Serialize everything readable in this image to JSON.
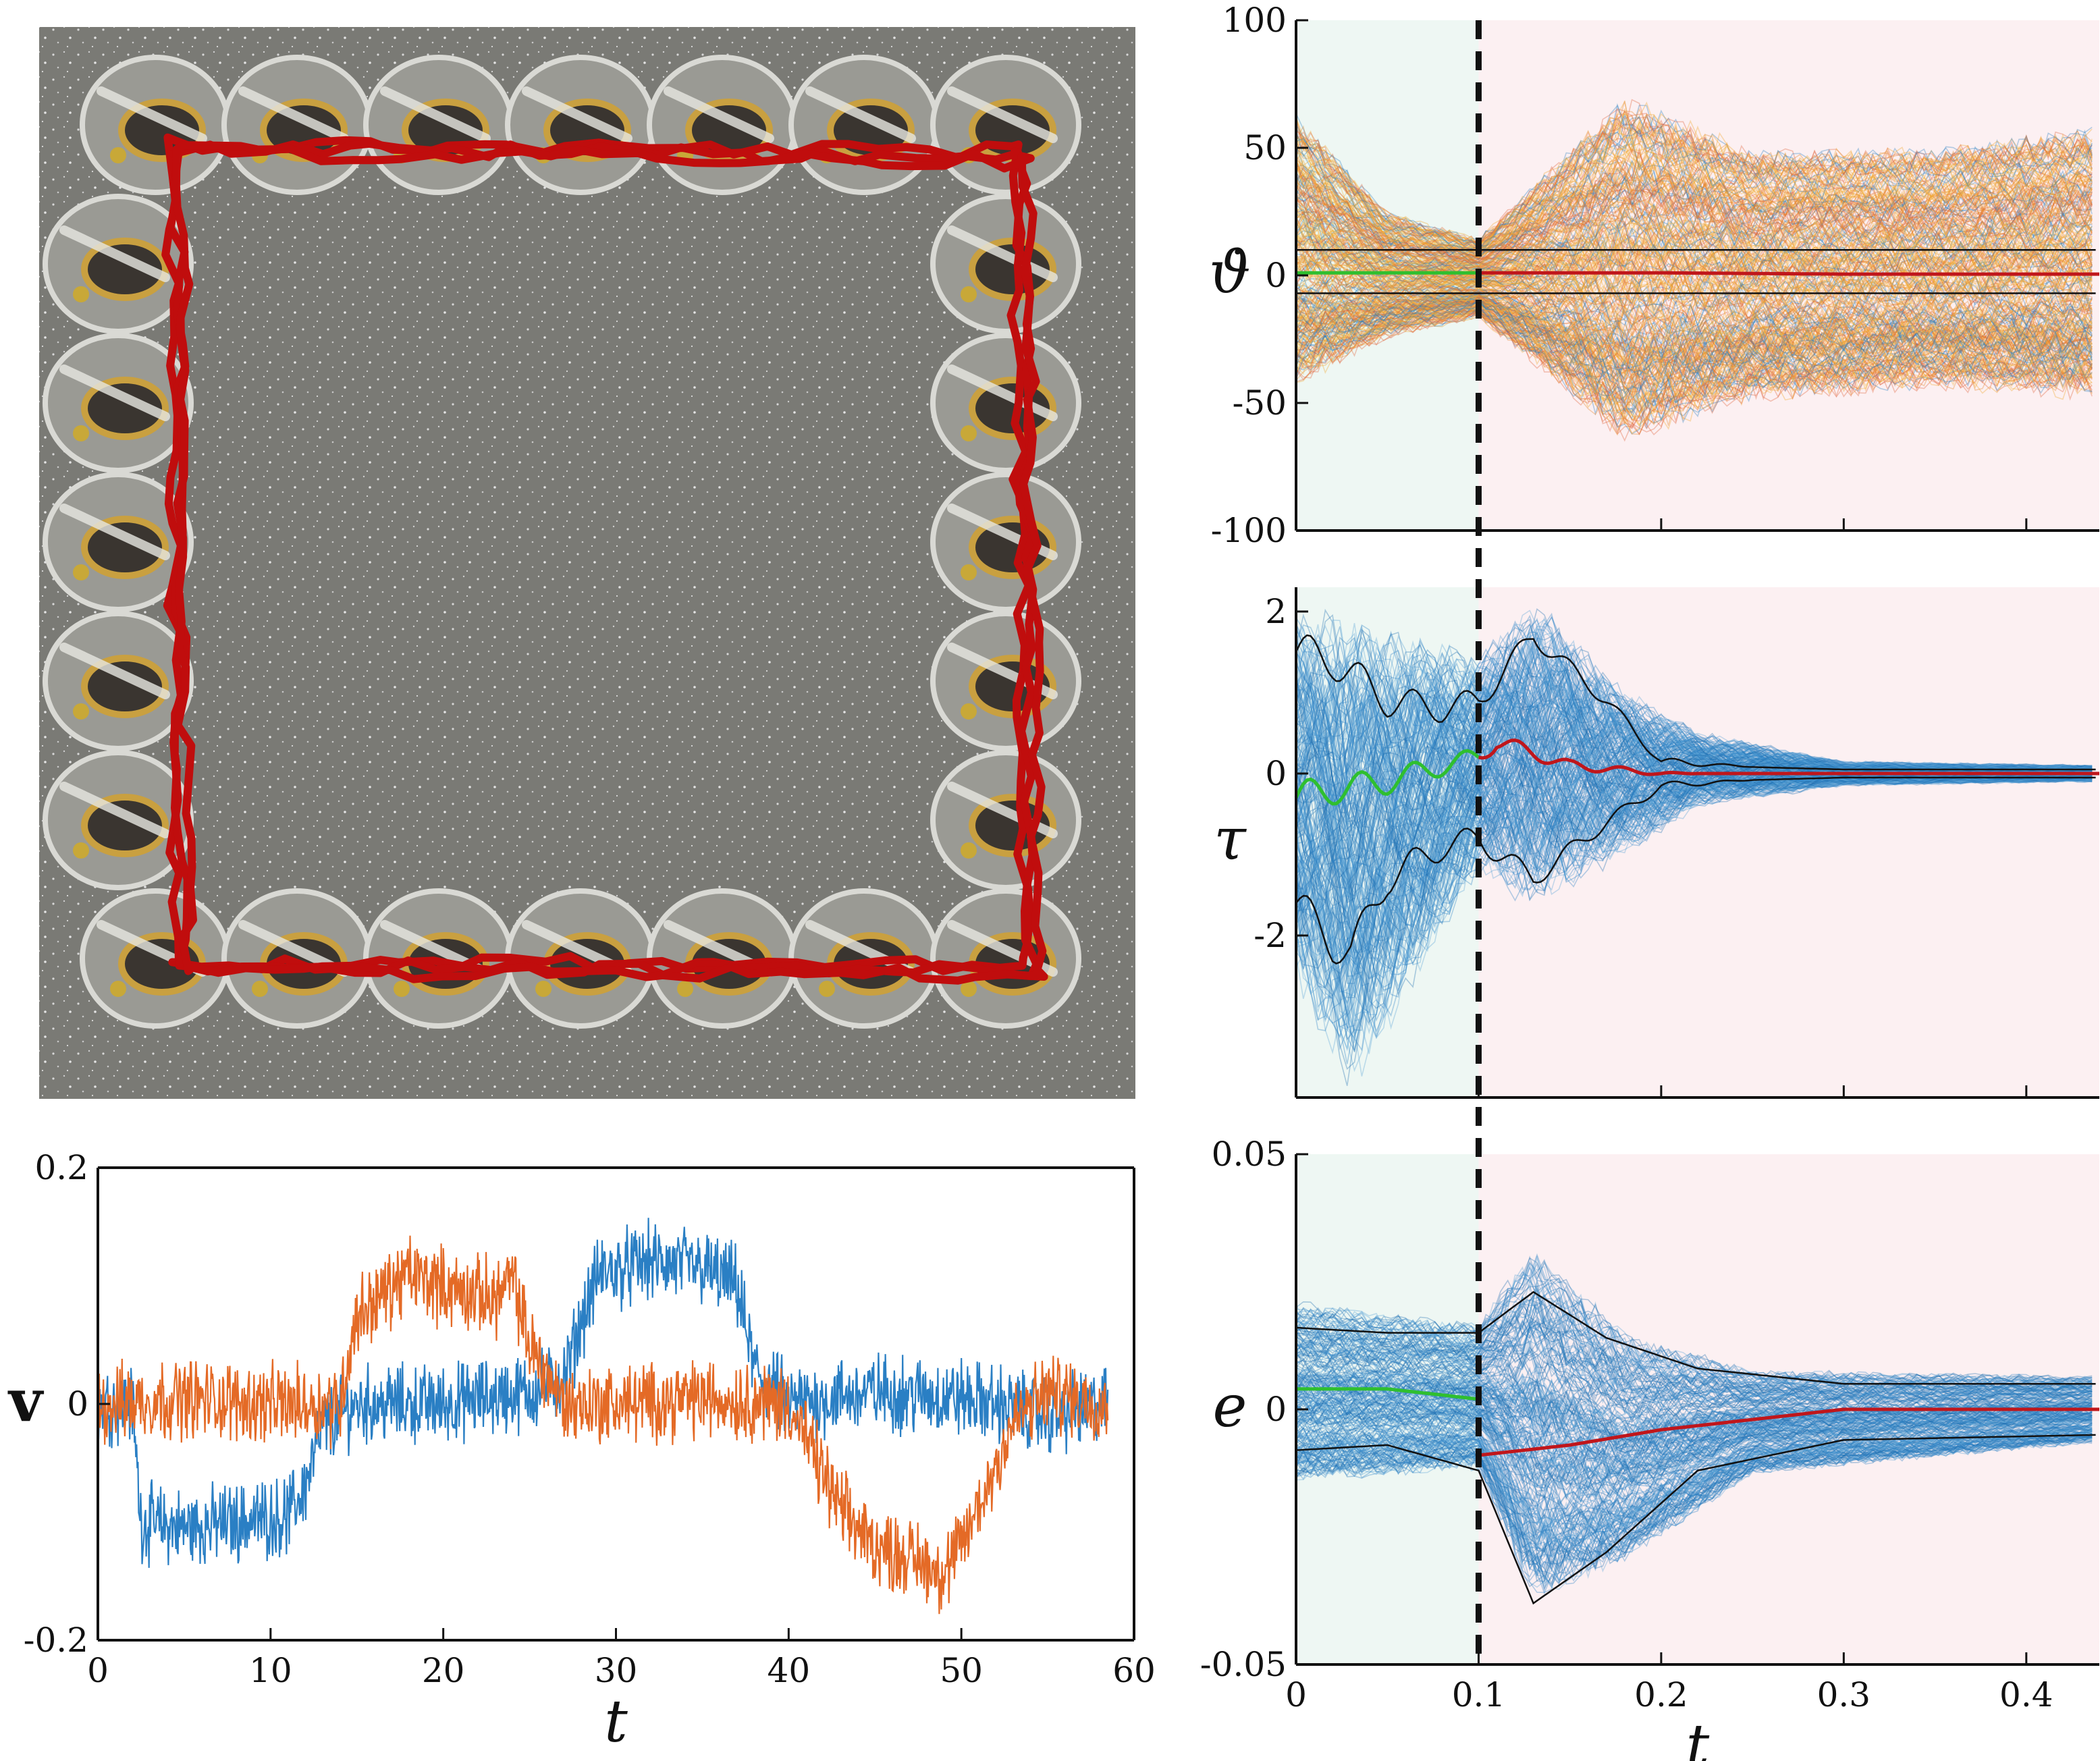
{
  "chart_data": [
    {
      "panel": "photo",
      "type": "image",
      "caption": ""
    },
    {
      "panel": "velocity",
      "type": "line",
      "xlabel": "t",
      "ylabel": "v",
      "xlim": [
        0,
        60
      ],
      "ylim": [
        -0.2,
        0.2
      ],
      "xticks": [
        0,
        10,
        20,
        30,
        40,
        50,
        60
      ],
      "xtick_labels": [
        "0",
        "10",
        "20",
        "30",
        "40",
        "50",
        "60"
      ],
      "yticks": [
        -0.2,
        0,
        0.2
      ],
      "ytick_labels": [
        "-0.2",
        "0",
        "0.2"
      ],
      "grid": false,
      "series": [
        {
          "color": "#2a7fc4",
          "x": [
            0,
            2,
            2.5,
            5,
            8,
            11,
            12,
            13,
            15,
            20,
            25,
            27,
            28,
            29,
            32,
            35,
            37,
            38,
            40,
            45,
            50,
            52,
            55,
            58.5
          ],
          "values": [
            0,
            0,
            -0.1,
            -0.105,
            -0.1,
            -0.095,
            -0.07,
            -0.02,
            0,
            0,
            0.01,
            0.02,
            0.07,
            0.11,
            0.12,
            0.115,
            0.1,
            0.03,
            0,
            0.01,
            0.005,
            0.0,
            -0.01,
            0
          ]
        },
        {
          "color": "#e46a26",
          "x": [
            0,
            5,
            10,
            14,
            15,
            18,
            21,
            23,
            24,
            25,
            27,
            30,
            35,
            40,
            41,
            43,
            45,
            48,
            49,
            50,
            51.5,
            53,
            55,
            58.5
          ],
          "values": [
            0,
            0.005,
            0.0,
            0.0,
            0.075,
            0.11,
            0.095,
            0.09,
            0.105,
            0.05,
            0.0,
            0.0,
            0.005,
            0.0,
            -0.03,
            -0.09,
            -0.12,
            -0.135,
            -0.145,
            -0.12,
            -0.07,
            -0.015,
            0.01,
            0.0
          ]
        }
      ]
    },
    {
      "panel": "theta-dot",
      "type": "line",
      "xlabel": "",
      "ylabel": "ϑ̇",
      "xlim": [
        0,
        0.44
      ],
      "ylim": [
        -100,
        100
      ],
      "yticks": [
        -100,
        -50,
        0,
        50,
        100
      ],
      "ytick_labels": [
        "-100",
        "-50",
        "0",
        "50",
        "100"
      ],
      "grid": false,
      "shaded_regions": [
        {
          "from": 0,
          "to": 0.1,
          "color": "#eef7f3"
        },
        {
          "from": 0.1,
          "to": 0.44,
          "color": "#fcf0f2"
        }
      ],
      "vline": 0.1,
      "mean": {
        "x": [
          0,
          0.1,
          0.2,
          0.3,
          0.44
        ],
        "values": [
          1,
          1,
          1,
          0.5,
          0.5
        ]
      },
      "upper_band": {
        "x": [
          0,
          0.1,
          0.2,
          0.3,
          0.44
        ],
        "values": [
          10,
          10,
          10,
          10,
          10
        ]
      },
      "lower_band": {
        "x": [
          0,
          0.1,
          0.2,
          0.3,
          0.44
        ],
        "values": [
          -7,
          -7,
          -7,
          -7,
          -7
        ]
      },
      "spread_envelope": {
        "x": [
          0,
          0.05,
          0.1,
          0.18,
          0.25,
          0.35,
          0.44
        ],
        "upper": [
          75,
          30,
          18,
          85,
          60,
          60,
          70
        ],
        "lower": [
          -55,
          -30,
          -20,
          -80,
          -60,
          -55,
          -60
        ]
      }
    },
    {
      "panel": "tau",
      "type": "line",
      "xlabel": "",
      "ylabel": "τ",
      "xlim": [
        0,
        0.44
      ],
      "ylim": [
        -4,
        2.3
      ],
      "yticks": [
        -2,
        0,
        2
      ],
      "ytick_labels": [
        "-2",
        "0",
        "2"
      ],
      "grid": false,
      "shaded_regions": [
        {
          "from": 0,
          "to": 0.1,
          "color": "#eef7f3"
        },
        {
          "from": 0.1,
          "to": 0.44,
          "color": "#fcf0f2"
        }
      ],
      "vline": 0.1,
      "mean": {
        "x": [
          0,
          0.02,
          0.05,
          0.08,
          0.1,
          0.11,
          0.15,
          0.2,
          0.25,
          0.3,
          0.44
        ],
        "values": [
          -0.3,
          -0.2,
          -0.1,
          0.1,
          0.2,
          0.4,
          0.1,
          0.0,
          0.0,
          0.0,
          0.0
        ]
      },
      "upper_band": {
        "x": [
          0,
          0.02,
          0.05,
          0.08,
          0.1,
          0.13,
          0.17,
          0.2,
          0.25,
          0.3,
          0.44
        ],
        "values": [
          1.5,
          1.4,
          0.9,
          0.8,
          0.9,
          1.7,
          0.9,
          0.15,
          0.08,
          0.05,
          0.05
        ]
      },
      "lower_band": {
        "x": [
          0,
          0.02,
          0.03,
          0.05,
          0.08,
          0.1,
          0.13,
          0.17,
          0.2,
          0.25,
          0.3,
          0.44
        ],
        "values": [
          -1.6,
          -2.1,
          -2.2,
          -1.3,
          -0.9,
          -0.8,
          -1.3,
          -0.6,
          -0.15,
          -0.08,
          -0.05,
          -0.05
        ]
      },
      "spread_envelope": {
        "x": [
          0,
          0.03,
          0.1,
          0.13,
          0.18,
          0.22,
          0.3,
          0.44
        ],
        "upper": [
          1.9,
          1.8,
          1.4,
          2.1,
          1.0,
          0.5,
          0.15,
          0.1
        ],
        "lower": [
          -2.5,
          -3.8,
          -1.2,
          -1.6,
          -1.0,
          -0.4,
          -0.15,
          -0.1
        ]
      }
    },
    {
      "panel": "e",
      "type": "line",
      "xlabel": "t",
      "ylabel": "e",
      "xlim": [
        0,
        0.44
      ],
      "ylim": [
        -0.05,
        0.05
      ],
      "xticks": [
        0,
        0.1,
        0.2,
        0.3,
        0.4
      ],
      "xtick_labels": [
        "0",
        "0.1",
        "0.2",
        "0.3",
        "0.4"
      ],
      "yticks": [
        -0.05,
        0,
        0.05
      ],
      "ytick_labels": [
        "-0.05",
        "0",
        "0.05"
      ],
      "grid": false,
      "shaded_regions": [
        {
          "from": 0,
          "to": 0.1,
          "color": "#eef7f3"
        },
        {
          "from": 0.1,
          "to": 0.44,
          "color": "#fcf0f2"
        }
      ],
      "vline": 0.1,
      "mean": {
        "x": [
          0,
          0.05,
          0.1,
          0.1,
          0.15,
          0.2,
          0.25,
          0.3,
          0.44
        ],
        "values": [
          0.004,
          0.004,
          0.002,
          -0.009,
          -0.007,
          -0.004,
          -0.002,
          0.0,
          0.0
        ]
      },
      "upper_band": {
        "x": [
          0,
          0.05,
          0.1,
          0.13,
          0.17,
          0.22,
          0.3,
          0.44
        ],
        "values": [
          0.016,
          0.015,
          0.015,
          0.023,
          0.014,
          0.008,
          0.005,
          0.005
        ]
      },
      "lower_band": {
        "x": [
          0,
          0.05,
          0.1,
          0.13,
          0.17,
          0.22,
          0.3,
          0.44
        ],
        "values": [
          -0.008,
          -0.007,
          -0.012,
          -0.038,
          -0.028,
          -0.012,
          -0.006,
          -0.005
        ]
      },
      "spread_envelope": {
        "x": [
          0,
          0.1,
          0.13,
          0.18,
          0.25,
          0.44
        ],
        "upper": [
          0.025,
          0.02,
          0.04,
          0.02,
          0.01,
          0.008
        ],
        "lower": [
          -0.018,
          -0.015,
          -0.045,
          -0.035,
          -0.015,
          -0.008
        ]
      }
    }
  ]
}
